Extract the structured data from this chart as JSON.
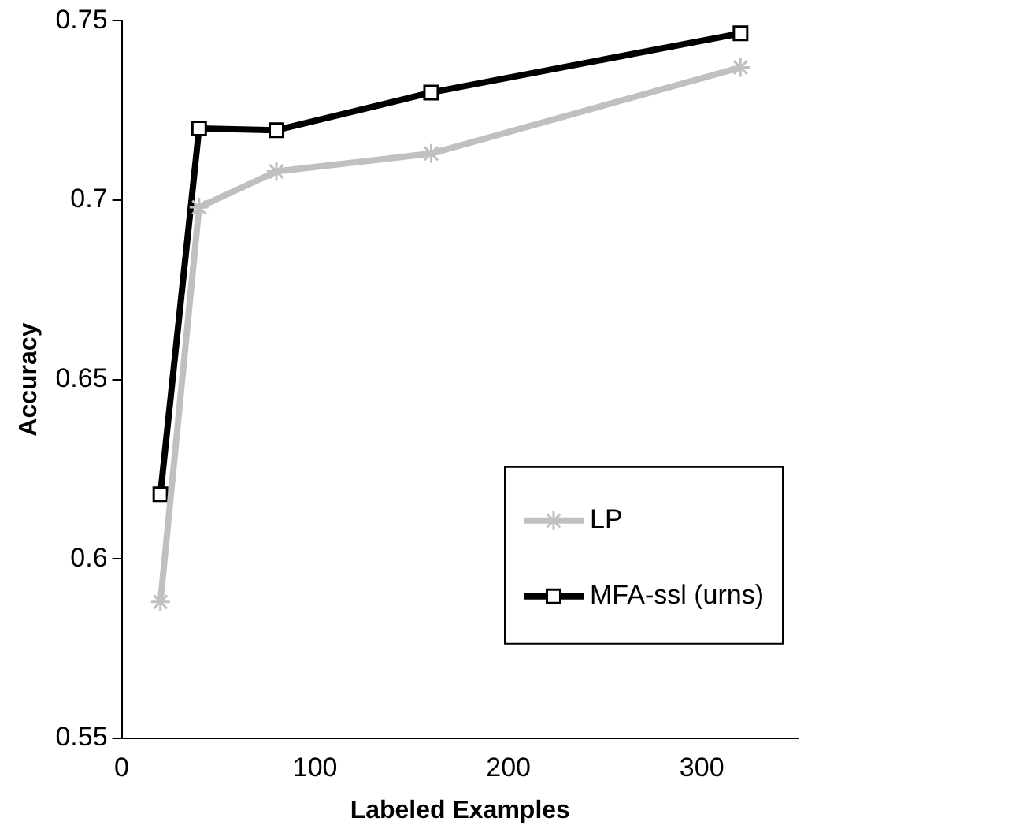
{
  "chart_data": {
    "type": "line",
    "xlabel": "Labeled Examples",
    "ylabel": "Accuracy",
    "xlim": [
      0,
      350
    ],
    "xticks": [
      0,
      100,
      200,
      300
    ],
    "ylim": [
      0.55,
      0.75
    ],
    "yticks": [
      0.55,
      0.6,
      0.65,
      0.7,
      0.75
    ],
    "x": [
      20,
      40,
      80,
      160,
      320
    ],
    "series": [
      {
        "name": "LP",
        "color": "#c0c0c0",
        "marker": "cross",
        "values": [
          0.588,
          0.698,
          0.708,
          0.713,
          0.737
        ]
      },
      {
        "name": "MFA-ssl (urns)",
        "color": "#000000",
        "marker": "square",
        "values": [
          0.618,
          0.72,
          0.7195,
          0.73,
          0.7465
        ]
      }
    ],
    "grid": false,
    "legend": "bottom right"
  }
}
